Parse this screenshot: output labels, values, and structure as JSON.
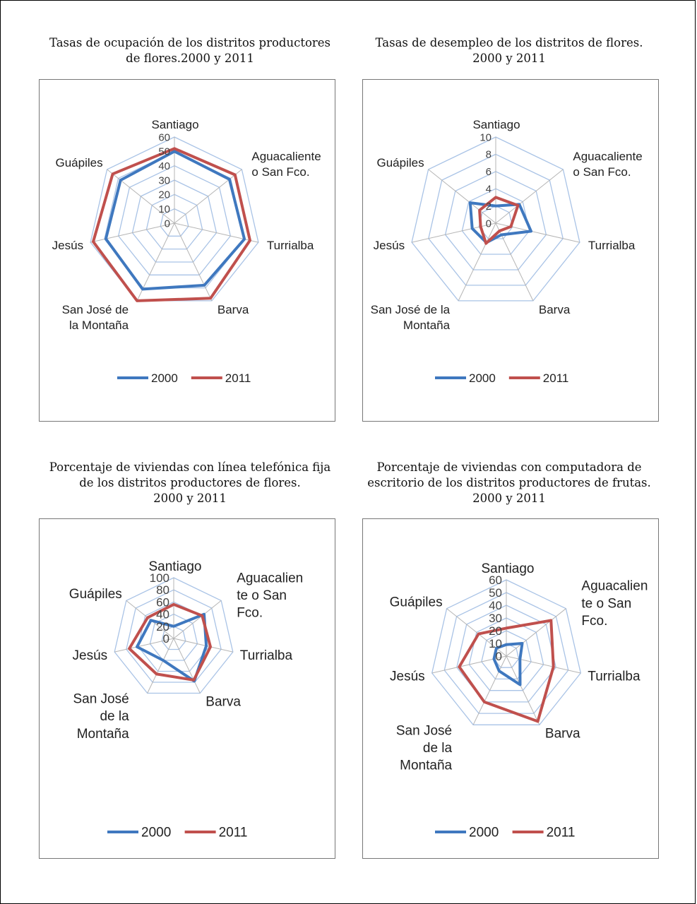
{
  "chart_data": [
    {
      "type": "radar",
      "title_lines": [
        "Tasas de ocupación de los distritos productores",
        "de  flores.2000 y 2011"
      ],
      "categories": [
        "Santiago",
        "Aguacaliente o San Fco.",
        "Turrialba",
        "Barva",
        "San José de la Montaña",
        "Jesús",
        "Guápiles"
      ],
      "category_lines": [
        [
          "Santiago"
        ],
        [
          "Aguacaliente",
          "o San Fco."
        ],
        [
          "Turrialba"
        ],
        [
          "Barva"
        ],
        [
          "San José de",
          "la Montaña"
        ],
        [
          "Jesús"
        ],
        [
          "Guápiles"
        ]
      ],
      "ticks": [
        "0",
        "10",
        "20",
        "30",
        "40",
        "50",
        "60"
      ],
      "rmax": 60,
      "legend_position": "bottom",
      "series": [
        {
          "name": "2000",
          "color": "#3f78bf",
          "values": [
            50,
            49,
            50,
            48,
            51,
            49,
            48
          ]
        },
        {
          "name": "2011",
          "color": "#c0504d",
          "values": [
            52,
            54,
            54,
            58,
            60,
            58,
            55
          ]
        }
      ]
    },
    {
      "type": "radar",
      "title_lines": [
        "Tasas de desempleo de los distritos  de  flores.",
        "2000 y 2011"
      ],
      "categories": [
        "Santiago",
        "Aguacaliente o San Fco.",
        "Turrialba",
        "Barva",
        "San José de la Montaña",
        "Jesús",
        "Guápiles"
      ],
      "category_lines": [
        [
          "Santiago"
        ],
        [
          "Aguacaliente",
          "o San Fco."
        ],
        [
          "Turrialba"
        ],
        [
          "Barva"
        ],
        [
          "San José de la",
          "Montaña"
        ],
        [
          "Jesús"
        ],
        [
          "Guápiles"
        ]
      ],
      "ticks": [
        "0",
        "2",
        "4",
        "6",
        "8",
        "10"
      ],
      "rmax": 10,
      "legend_position": "bottom",
      "series": [
        {
          "name": "2000",
          "color": "#3f78bf",
          "values": [
            2.0,
            3.5,
            4.2,
            1.5,
            2.5,
            2.8,
            3.8
          ]
        },
        {
          "name": "2011",
          "color": "#c0504d",
          "values": [
            3.0,
            3.3,
            1.8,
            1.0,
            2.6,
            1.8,
            2.4
          ]
        }
      ]
    },
    {
      "type": "radar",
      "title_lines": [
        "Porcentaje de viviendas con línea telefónica fija",
        "de los distritos productores de flores.",
        "2000 y 2011"
      ],
      "categories": [
        "Santiago",
        "Aguacaliente o San Fco.",
        "Turrialba",
        "Barva",
        "San José de la Montaña",
        "Jesús",
        "Guápiles"
      ],
      "category_lines": [
        [
          "Santiago"
        ],
        [
          "Aguacalien",
          "te o San",
          "Fco."
        ],
        [
          "Turrialba"
        ],
        [
          "Barva"
        ],
        [
          "San José",
          "de la",
          "Montaña"
        ],
        [
          "Jesús"
        ],
        [
          "Guápiles"
        ]
      ],
      "ticks": [
        "0",
        "20",
        "40",
        "60",
        "80",
        "100"
      ],
      "rmax": 100,
      "legend_position": "bottom",
      "series": [
        {
          "name": "2000",
          "color": "#3f78bf",
          "values": [
            20,
            64,
            55,
            78,
            40,
            62,
            48
          ]
        },
        {
          "name": "2011",
          "color": "#c0504d",
          "values": [
            56,
            60,
            62,
            76,
            65,
            75,
            55
          ]
        }
      ]
    },
    {
      "type": "radar",
      "title_lines": [
        "Porcentaje de viviendas con computadora de",
        "escritorio de los distritos productores de frutas.",
        "2000 y 2011"
      ],
      "categories": [
        "Santiago",
        "Aguacaliente o San Fco.",
        "Turrialba",
        "Barva",
        "San José de la Montaña",
        "Jesús",
        "Guápiles"
      ],
      "category_lines": [
        [
          "Santiago"
        ],
        [
          "Aguacalien",
          "te o San",
          "Fco."
        ],
        [
          "Turrialba"
        ],
        [
          "Barva"
        ],
        [
          "San José",
          "de la",
          "Montaña"
        ],
        [
          "Jesús"
        ],
        [
          "Guápiles"
        ]
      ],
      "ticks": [
        "0",
        "10",
        "20",
        "30",
        "40",
        "50",
        "60"
      ],
      "rmax": 60,
      "legend_position": "bottom",
      "series": [
        {
          "name": "2000",
          "color": "#3f78bf",
          "values": [
            9,
            16,
            11,
            25,
            13,
            10,
            10
          ]
        },
        {
          "name": "2011",
          "color": "#c0504d",
          "values": [
            22,
            45,
            38,
            57,
            40,
            38,
            28
          ]
        }
      ]
    }
  ]
}
